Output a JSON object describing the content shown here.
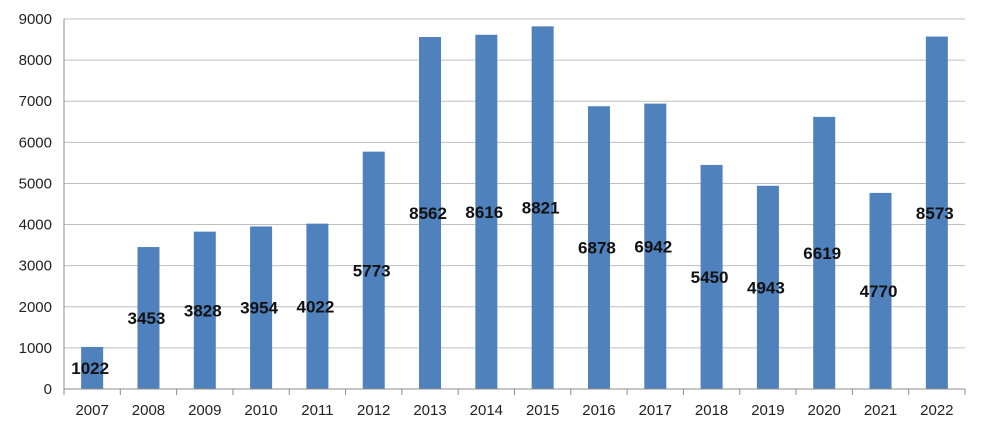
{
  "chart_data": {
    "type": "bar",
    "categories": [
      "2007",
      "2008",
      "2009",
      "2010",
      "2011",
      "2012",
      "2013",
      "2014",
      "2015",
      "2016",
      "2017",
      "2018",
      "2019",
      "2020",
      "2021",
      "2022"
    ],
    "values": [
      1022,
      3453,
      3828,
      3954,
      4022,
      5773,
      8562,
      8616,
      8821,
      6878,
      6942,
      5450,
      4943,
      6619,
      4770,
      8573
    ],
    "data_labels": [
      "1022",
      "3453",
      "3828",
      "3954",
      "4022",
      "5773",
      "8562",
      "8616",
      "8821",
      "6878",
      "6942",
      "5450",
      "4943",
      "6619",
      "4770",
      "8573"
    ],
    "y_ticks": [
      "0",
      "1000",
      "2000",
      "3000",
      "4000",
      "5000",
      "6000",
      "7000",
      "8000",
      "9000"
    ],
    "ylim": [
      0,
      9000
    ],
    "title": "",
    "xlabel": "",
    "ylabel": "",
    "grid": true,
    "legend": "none",
    "colors": {
      "bar": "#4F81BD",
      "grid": "#BFBFBF",
      "axis": "#8C8C8C",
      "text": "#222222",
      "data_label": "#111111"
    }
  }
}
